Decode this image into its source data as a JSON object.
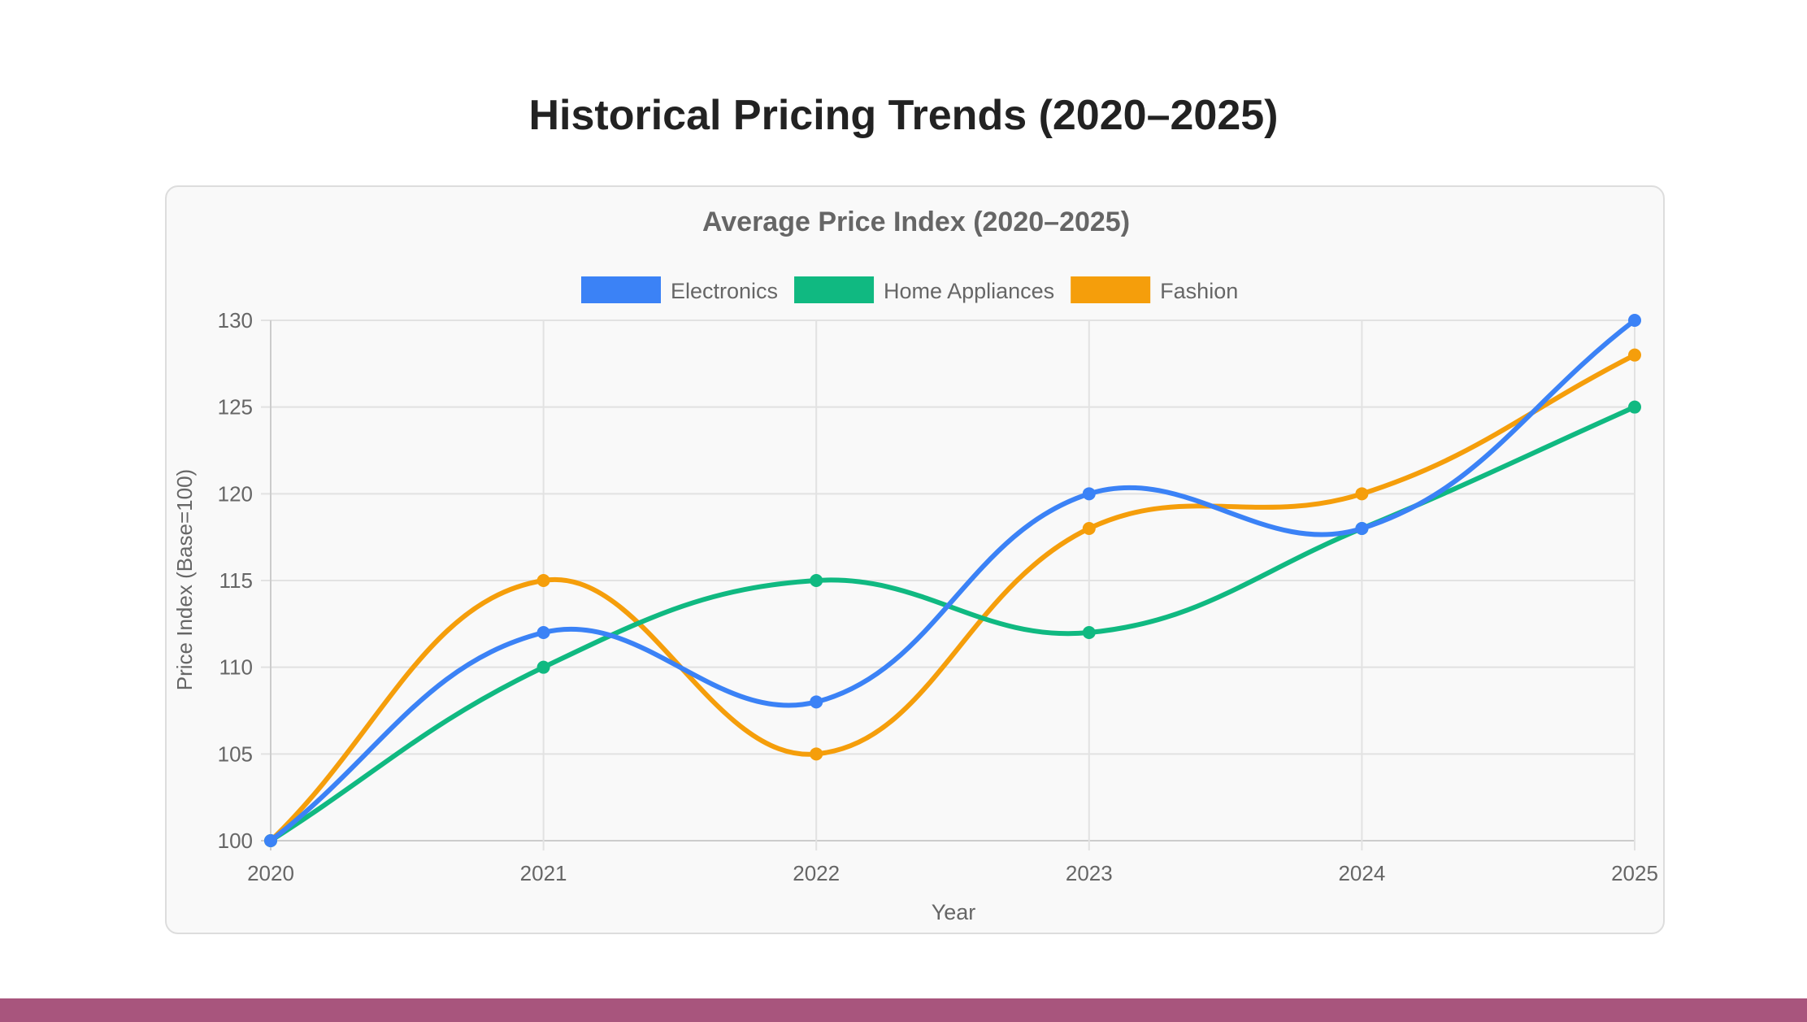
{
  "page": {
    "title": "Historical Pricing Trends (2020–2025)",
    "accent_bar_color": "#a8557d"
  },
  "chart_data": {
    "type": "line",
    "title": "Average Price Index (2020–2025)",
    "xlabel": "Year",
    "ylabel": "Price Index (Base=100)",
    "categories": [
      "2020",
      "2021",
      "2022",
      "2023",
      "2024",
      "2025"
    ],
    "ylim": [
      100,
      130
    ],
    "yticks": [
      100,
      105,
      110,
      115,
      120,
      125,
      130
    ],
    "grid": true,
    "legend": "top",
    "smooth": true,
    "series": [
      {
        "name": "Electronics",
        "color": "#3b82f6",
        "values": [
          100,
          112,
          108,
          120,
          118,
          130
        ]
      },
      {
        "name": "Home Appliances",
        "color": "#10b981",
        "values": [
          100,
          110,
          115,
          112,
          118,
          125
        ]
      },
      {
        "name": "Fashion",
        "color": "#f59e0b",
        "values": [
          100,
          115,
          105,
          118,
          120,
          128
        ]
      }
    ]
  }
}
